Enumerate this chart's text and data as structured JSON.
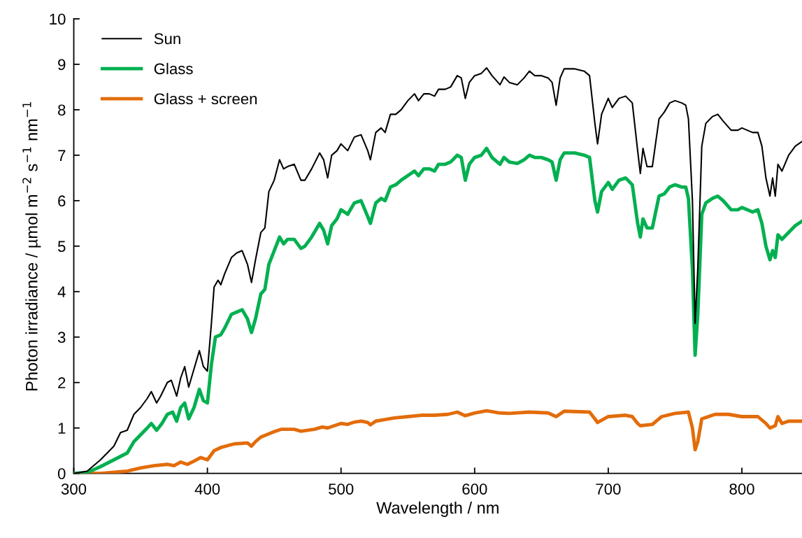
{
  "chart_data": {
    "type": "line",
    "xlabel": "Wavelength / nm",
    "ylabel": "Photon irradiance / µmol m$^{−2}$ s$^{−1}$ nm$^{−1}$",
    "xlim": [
      300,
      845
    ],
    "xticks": [
      300,
      400,
      500,
      600,
      700,
      800
    ],
    "ylim": [
      0,
      10
    ],
    "yticks": [
      0,
      1,
      2,
      3,
      4,
      5,
      6,
      7,
      8,
      9,
      10
    ],
    "grid": false,
    "legend": "top left",
    "marker": "none",
    "line_style": "solid",
    "series": [
      {
        "name": "Sun",
        "color": "#000000",
        "x": [
          300,
          310,
          320,
          330,
          335,
          340,
          345,
          350,
          355,
          358,
          362,
          365,
          370,
          373,
          377,
          380,
          383,
          386,
          390,
          394,
          397,
          400,
          403,
          405,
          408,
          410,
          413,
          418,
          422,
          426,
          430,
          433,
          436,
          440,
          443,
          446,
          450,
          454,
          457,
          460,
          465,
          470,
          473,
          478,
          484,
          487,
          490,
          493,
          497,
          500,
          505,
          510,
          515,
          520,
          522,
          526,
          530,
          533,
          537,
          541,
          545,
          550,
          555,
          558,
          562,
          566,
          570,
          573,
          578,
          582,
          587,
          590,
          593,
          596,
          600,
          605,
          609,
          613,
          619,
          622,
          626,
          632,
          637,
          641,
          645,
          650,
          655,
          658,
          661,
          664,
          667,
          675,
          682,
          686,
          690,
          692,
          695,
          700,
          703,
          708,
          713,
          718,
          722,
          724,
          726,
          729,
          733,
          738,
          742,
          746,
          750,
          755,
          758,
          760,
          763,
          765,
          767,
          770,
          773,
          778,
          782,
          786,
          792,
          797,
          800,
          808,
          812,
          815,
          818,
          821,
          823,
          825,
          827,
          830,
          835,
          840,
          845
        ],
        "values": [
          0,
          0.05,
          0.3,
          0.6,
          0.9,
          0.95,
          1.3,
          1.45,
          1.65,
          1.8,
          1.55,
          1.7,
          2.0,
          2.05,
          1.7,
          2.1,
          2.35,
          1.9,
          2.3,
          2.7,
          2.35,
          2.25,
          3.3,
          4.1,
          4.25,
          4.15,
          4.4,
          4.75,
          4.85,
          4.9,
          4.6,
          4.2,
          4.7,
          5.3,
          5.4,
          6.2,
          6.45,
          6.9,
          6.7,
          6.75,
          6.8,
          6.45,
          6.45,
          6.7,
          7.05,
          6.9,
          6.5,
          7.0,
          7.1,
          7.25,
          7.1,
          7.4,
          7.45,
          7.1,
          6.9,
          7.5,
          7.6,
          7.5,
          7.9,
          7.9,
          8.0,
          8.2,
          8.35,
          8.2,
          8.35,
          8.35,
          8.3,
          8.45,
          8.45,
          8.5,
          8.75,
          8.7,
          8.25,
          8.6,
          8.75,
          8.8,
          8.92,
          8.75,
          8.55,
          8.72,
          8.6,
          8.55,
          8.7,
          8.85,
          8.75,
          8.75,
          8.7,
          8.6,
          8.1,
          8.7,
          8.9,
          8.9,
          8.85,
          8.75,
          7.7,
          7.25,
          7.9,
          8.25,
          8.05,
          8.25,
          8.3,
          8.15,
          7.1,
          6.6,
          7.15,
          6.75,
          6.75,
          7.8,
          7.95,
          8.15,
          8.2,
          8.15,
          8.1,
          7.8,
          6.0,
          3.3,
          4.5,
          7.2,
          7.7,
          7.85,
          7.9,
          7.75,
          7.55,
          7.55,
          7.6,
          7.5,
          7.5,
          7.2,
          6.5,
          6.1,
          6.5,
          6.1,
          6.8,
          6.65,
          7.0,
          7.2,
          7.3
        ]
      },
      {
        "name": "Glass",
        "color": "#00b050",
        "x": [
          300,
          310,
          320,
          330,
          340,
          345,
          350,
          355,
          358,
          362,
          366,
          370,
          374,
          377,
          380,
          383,
          386,
          390,
          394,
          397,
          400,
          403,
          406,
          410,
          413,
          418,
          422,
          426,
          430,
          433,
          436,
          440,
          443,
          446,
          450,
          454,
          457,
          460,
          465,
          470,
          473,
          478,
          484,
          487,
          490,
          493,
          497,
          500,
          505,
          510,
          515,
          520,
          522,
          526,
          530,
          533,
          537,
          541,
          545,
          550,
          555,
          558,
          562,
          566,
          570,
          573,
          578,
          582,
          587,
          590,
          593,
          596,
          600,
          605,
          609,
          613,
          619,
          622,
          626,
          632,
          637,
          641,
          645,
          650,
          655,
          658,
          661,
          664,
          667,
          675,
          682,
          686,
          690,
          692,
          695,
          700,
          703,
          708,
          713,
          718,
          722,
          724,
          726,
          729,
          733,
          738,
          742,
          746,
          750,
          755,
          758,
          760,
          763,
          765,
          767,
          770,
          773,
          778,
          782,
          786,
          792,
          797,
          800,
          808,
          812,
          815,
          818,
          821,
          823,
          825,
          827,
          830,
          835,
          840,
          845
        ],
        "values": [
          0,
          0.02,
          0.15,
          0.3,
          0.45,
          0.7,
          0.85,
          1.0,
          1.1,
          0.95,
          1.1,
          1.3,
          1.35,
          1.15,
          1.45,
          1.55,
          1.2,
          1.45,
          1.85,
          1.6,
          1.55,
          2.4,
          3.0,
          3.05,
          3.2,
          3.5,
          3.55,
          3.6,
          3.4,
          3.1,
          3.4,
          3.95,
          4.05,
          4.6,
          4.9,
          5.2,
          5.05,
          5.15,
          5.15,
          4.95,
          5.0,
          5.2,
          5.5,
          5.35,
          5.05,
          5.45,
          5.6,
          5.8,
          5.7,
          5.95,
          6.0,
          5.65,
          5.5,
          5.95,
          6.05,
          6.0,
          6.3,
          6.35,
          6.45,
          6.55,
          6.65,
          6.55,
          6.7,
          6.7,
          6.65,
          6.8,
          6.8,
          6.85,
          7.0,
          6.95,
          6.45,
          6.8,
          6.95,
          7.0,
          7.15,
          6.95,
          6.8,
          6.95,
          6.85,
          6.82,
          6.9,
          7.0,
          6.95,
          6.95,
          6.9,
          6.85,
          6.45,
          6.9,
          7.05,
          7.05,
          7.0,
          6.95,
          6.0,
          5.75,
          6.2,
          6.4,
          6.25,
          6.45,
          6.5,
          6.35,
          5.5,
          5.2,
          5.6,
          5.4,
          5.4,
          6.1,
          6.15,
          6.3,
          6.35,
          6.3,
          6.3,
          6.05,
          4.5,
          2.6,
          3.5,
          5.7,
          5.95,
          6.05,
          6.1,
          6.0,
          5.8,
          5.8,
          5.85,
          5.75,
          5.8,
          5.5,
          5.0,
          4.7,
          4.9,
          4.75,
          5.25,
          5.15,
          5.3,
          5.45,
          5.55
        ]
      },
      {
        "name": "Glass + screen",
        "color": "#e36c0a",
        "x": [
          300,
          320,
          340,
          350,
          360,
          370,
          375,
          380,
          385,
          390,
          395,
          400,
          405,
          410,
          420,
          430,
          433,
          436,
          440,
          450,
          455,
          465,
          470,
          480,
          486,
          490,
          495,
          500,
          505,
          510,
          515,
          520,
          522,
          526,
          530,
          540,
          550,
          560,
          570,
          580,
          587,
          593,
          600,
          609,
          619,
          626,
          641,
          655,
          661,
          667,
          686,
          690,
          692,
          700,
          713,
          718,
          722,
          724,
          733,
          740,
          750,
          760,
          763,
          765,
          767,
          770,
          780,
          790,
          800,
          812,
          818,
          821,
          825,
          827,
          830,
          835,
          845
        ],
        "values": [
          0,
          0.0,
          0.05,
          0.12,
          0.17,
          0.2,
          0.17,
          0.25,
          0.2,
          0.27,
          0.35,
          0.3,
          0.5,
          0.57,
          0.65,
          0.67,
          0.6,
          0.7,
          0.8,
          0.92,
          0.97,
          0.97,
          0.93,
          0.97,
          1.02,
          1.0,
          1.05,
          1.1,
          1.08,
          1.13,
          1.15,
          1.12,
          1.07,
          1.15,
          1.17,
          1.22,
          1.25,
          1.28,
          1.28,
          1.3,
          1.35,
          1.27,
          1.33,
          1.38,
          1.33,
          1.32,
          1.35,
          1.33,
          1.25,
          1.37,
          1.35,
          1.2,
          1.12,
          1.25,
          1.28,
          1.25,
          1.1,
          1.05,
          1.08,
          1.25,
          1.32,
          1.35,
          1.0,
          0.52,
          0.7,
          1.2,
          1.3,
          1.3,
          1.25,
          1.25,
          1.1,
          1.0,
          1.05,
          1.25,
          1.1,
          1.15,
          1.15
        ]
      }
    ]
  }
}
